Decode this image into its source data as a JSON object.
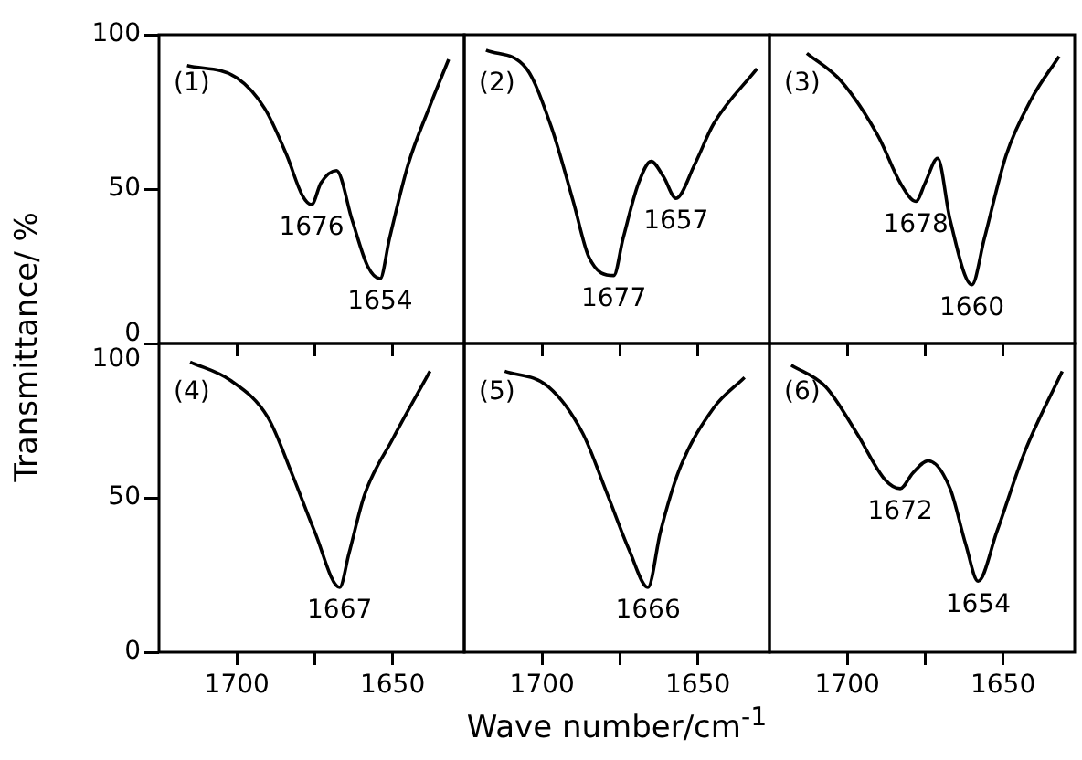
{
  "chart_data": [
    {
      "type": "line",
      "title": "(1)",
      "xlim": [
        1725,
        1627
      ],
      "xticks": [
        {
          "value": 1700,
          "label": null
        },
        {
          "value": 1675,
          "label": null
        },
        {
          "value": 1650,
          "label": null
        }
      ],
      "ylim": [
        0,
        100
      ],
      "yticks": [
        0,
        50,
        100
      ],
      "tick_labels": "y",
      "grid": false,
      "legend": false,
      "marker": "none",
      "line_style": "solid",
      "series": [
        {
          "color": "#000000",
          "x": [
            1716,
            1700,
            1691,
            1684,
            1679,
            1676,
            1673,
            1668,
            1663,
            1658,
            1654,
            1651,
            1645,
            1638,
            1632
          ],
          "values": [
            90,
            86,
            76,
            61,
            48,
            45,
            52,
            56,
            40,
            25,
            21,
            34,
            58,
            77,
            92
          ]
        }
      ],
      "annotations": [
        {
          "text": "1676",
          "x": 1676,
          "y": 45
        },
        {
          "text": "1654",
          "x": 1654,
          "y": 21
        }
      ]
    },
    {
      "type": "line",
      "title": "(2)",
      "xlim": [
        1725,
        1627
      ],
      "xticks": [
        {
          "value": 1700,
          "label": null
        },
        {
          "value": 1675,
          "label": null
        },
        {
          "value": 1650,
          "label": null
        }
      ],
      "ylim": [
        0,
        100
      ],
      "tick_labels": false,
      "grid": false,
      "legend": false,
      "marker": "none",
      "line_style": "solid",
      "series": [
        {
          "color": "#000000",
          "x": [
            1718,
            1705,
            1697,
            1690,
            1685,
            1677,
            1674,
            1669,
            1665,
            1661,
            1657,
            1651,
            1645,
            1631
          ],
          "values": [
            95,
            89,
            70,
            46,
            28,
            22,
            34,
            52,
            59,
            54,
            47,
            58,
            71,
            89
          ]
        }
      ],
      "annotations": [
        {
          "text": "1677",
          "x": 1677,
          "y": 22
        },
        {
          "text": "1657",
          "x": 1657,
          "y": 47
        }
      ]
    },
    {
      "type": "line",
      "title": "(3)",
      "xlim": [
        1725,
        1627
      ],
      "xticks": [
        {
          "value": 1700,
          "label": null
        },
        {
          "value": 1675,
          "label": null
        },
        {
          "value": 1650,
          "label": null
        }
      ],
      "ylim": [
        0,
        100
      ],
      "tick_labels": false,
      "grid": false,
      "legend": false,
      "marker": "none",
      "line_style": "solid",
      "series": [
        {
          "color": "#000000",
          "x": [
            1713,
            1702,
            1690,
            1683,
            1678,
            1675,
            1671,
            1667,
            1660,
            1656,
            1649,
            1641,
            1632
          ],
          "values": [
            94,
            85,
            67,
            52,
            46,
            52,
            60,
            40,
            19,
            34,
            61,
            79,
            93
          ]
        }
      ],
      "annotations": [
        {
          "text": "1678",
          "x": 1678,
          "y": 46
        },
        {
          "text": "1660",
          "x": 1660,
          "y": 19
        }
      ]
    },
    {
      "type": "line",
      "title": "(4)",
      "ylabel": "Transmittance/ %",
      "xlim": [
        1725,
        1627
      ],
      "xticks": [
        {
          "value": 1700,
          "label": "1700"
        },
        {
          "value": 1675,
          "label": null
        },
        {
          "value": 1650,
          "label": "1650"
        }
      ],
      "ylim": [
        0,
        100
      ],
      "yticks": [
        0,
        50,
        100
      ],
      "grid": false,
      "legend": false,
      "marker": "none",
      "line_style": "solid",
      "series": [
        {
          "color": "#000000",
          "x": [
            1715,
            1702,
            1690,
            1682,
            1675,
            1667,
            1664,
            1659,
            1650,
            1638
          ],
          "values": [
            94,
            88,
            76,
            57,
            39,
            21,
            32,
            51,
            69,
            91
          ]
        }
      ],
      "annotations": [
        {
          "text": "1667",
          "x": 1667,
          "y": 21
        }
      ]
    },
    {
      "type": "line",
      "title": "(5)",
      "xlabel": "Wave number/cm$^{-1}$",
      "xlim": [
        1725,
        1627
      ],
      "xticks": [
        {
          "value": 1700,
          "label": "1700"
        },
        {
          "value": 1675,
          "label": null
        },
        {
          "value": 1650,
          "label": "1650"
        }
      ],
      "ylim": [
        0,
        100
      ],
      "tick_labels": "x",
      "grid": false,
      "legend": false,
      "marker": "none",
      "line_style": "solid",
      "series": [
        {
          "color": "#000000",
          "x": [
            1712,
            1698,
            1687,
            1679,
            1672,
            1666,
            1662,
            1656,
            1645,
            1635
          ],
          "values": [
            91,
            86,
            71,
            51,
            33,
            21,
            39,
            59,
            79,
            89
          ]
        }
      ],
      "annotations": [
        {
          "text": "1666",
          "x": 1666,
          "y": 21
        }
      ]
    },
    {
      "type": "line",
      "title": "(6)",
      "xlim": [
        1725,
        1627
      ],
      "xticks": [
        {
          "value": 1700,
          "label": "1700"
        },
        {
          "value": 1675,
          "label": null
        },
        {
          "value": 1650,
          "label": "1650"
        }
      ],
      "ylim": [
        0,
        100
      ],
      "tick_labels": "x",
      "grid": false,
      "legend": false,
      "marker": "none",
      "line_style": "solid",
      "series": [
        {
          "color": "#000000",
          "x": [
            1718,
            1707,
            1697,
            1688,
            1683,
            1679,
            1674,
            1667,
            1662,
            1658,
            1652,
            1643,
            1631
          ],
          "values": [
            93,
            86,
            71,
            56,
            53,
            58,
            62,
            53,
            35,
            23,
            39,
            65,
            91
          ]
        }
      ],
      "annotations": [
        {
          "text": "1672",
          "x": 1683,
          "y": 53
        },
        {
          "text": "1654",
          "x": 1658,
          "y": 23
        }
      ]
    }
  ]
}
